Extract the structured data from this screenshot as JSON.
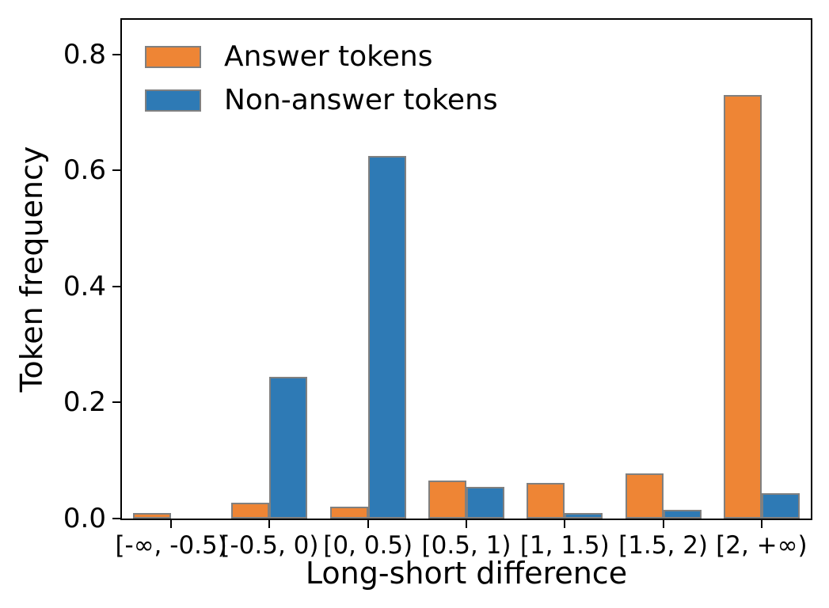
{
  "chart_data": {
    "type": "bar",
    "title": "",
    "xlabel": "Long-short difference",
    "ylabel": "Token frequency",
    "categories": [
      "[-∞, -0.5)",
      "[-0.5, 0)",
      "[0, 0.5)",
      "[0.5, 1)",
      "[1, 1.5)",
      "[1.5, 2)",
      "[2, +∞)"
    ],
    "series": [
      {
        "name": "Answer tokens",
        "color": "#ee8535",
        "values": [
          0.01,
          0.027,
          0.02,
          0.065,
          0.062,
          0.078,
          0.73
        ]
      },
      {
        "name": "Non-answer tokens",
        "color": "#2e7ab5",
        "values": [
          0.0,
          0.245,
          0.625,
          0.055,
          0.01,
          0.015,
          0.044
        ]
      }
    ],
    "ytick_labels": [
      "0.0",
      "0.2",
      "0.4",
      "0.6",
      "0.8"
    ],
    "ytick_values": [
      0.0,
      0.2,
      0.4,
      0.6,
      0.8
    ],
    "ylim": [
      0,
      0.86
    ],
    "bar_edge_color": "#808080",
    "axis_color": "#000000",
    "background_color": "#ffffff",
    "legend_position": "upper left",
    "grid": false
  }
}
